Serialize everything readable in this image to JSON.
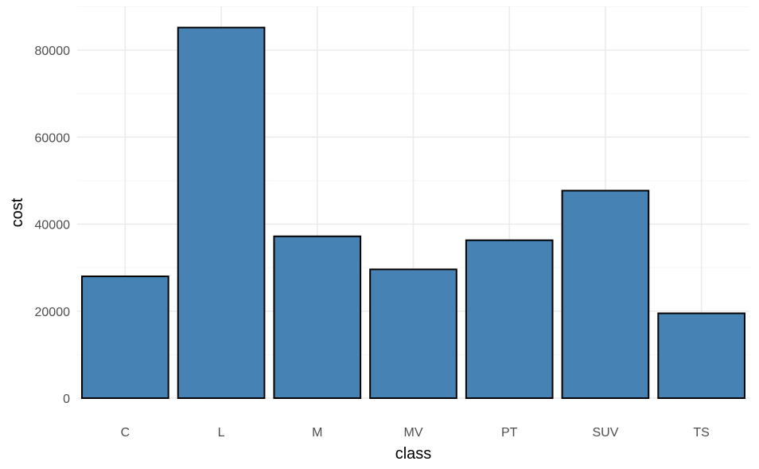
{
  "chart_data": {
    "type": "bar",
    "title": "",
    "xlabel": "class",
    "ylabel": "cost",
    "categories": [
      "C",
      "L",
      "M",
      "MV",
      "PT",
      "SUV",
      "TS"
    ],
    "values": [
      28000,
      85200,
      37200,
      29600,
      36300,
      47700,
      19500
    ],
    "ylim": [
      0,
      90000
    ],
    "yticks": [
      0,
      20000,
      40000,
      60000,
      80000
    ],
    "ytick_labels": [
      "0",
      "20000",
      "40000",
      "60000",
      "80000"
    ],
    "grid": true,
    "legend": "none",
    "colors": {
      "bar_fill": "#4682B4",
      "bar_outline": "#000000",
      "grid_major": "#EBEBEB",
      "grid_minor": "#F5F5F5"
    }
  }
}
